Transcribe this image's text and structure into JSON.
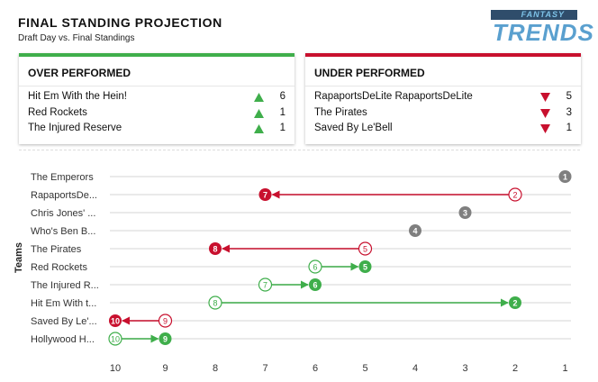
{
  "header": {
    "title": "FINAL STANDING PROJECTION",
    "subtitle": "Draft Day vs. Final Standings"
  },
  "logo": {
    "small_text": "FANTASY",
    "big_text": "TRENDS"
  },
  "over": {
    "title": "OVER PERFORMED",
    "color": "#3fae4b",
    "rows": [
      {
        "name": "Hit Em With the Hein!",
        "value": "6"
      },
      {
        "name": "Red Rockets",
        "value": "1"
      },
      {
        "name": "The Injured Reserve",
        "value": "1"
      }
    ]
  },
  "under": {
    "title": "UNDER PERFORMED",
    "color": "#c8102e",
    "rows": [
      {
        "name": "RapaportsDeLite RapaportsDeLite",
        "value": "5"
      },
      {
        "name": "The Pirates",
        "value": "3"
      },
      {
        "name": "Saved By Le'Bell",
        "value": "1"
      }
    ]
  },
  "chart_data": {
    "type": "scatter",
    "ylabel": "Teams",
    "xlabel": "",
    "xlim": [
      10,
      1
    ],
    "x_ticks": [
      "10",
      "9",
      "8",
      "7",
      "6",
      "5",
      "4",
      "3",
      "2",
      "1"
    ],
    "colors": {
      "up": "#3fae4b",
      "down": "#c8102e",
      "same": "#7f7f7f"
    },
    "teams": [
      {
        "label": "The Emperors",
        "draft": 1,
        "final": 1
      },
      {
        "label": "RapaportsDe...",
        "draft": 2,
        "final": 7
      },
      {
        "label": "Chris Jones' ...",
        "draft": 3,
        "final": 3
      },
      {
        "label": "Who's Ben B...",
        "draft": 4,
        "final": 4
      },
      {
        "label": "The Pirates",
        "draft": 5,
        "final": 8
      },
      {
        "label": "Red Rockets",
        "draft": 6,
        "final": 5
      },
      {
        "label": "The Injured R...",
        "draft": 7,
        "final": 6
      },
      {
        "label": "Hit Em With t...",
        "draft": 8,
        "final": 2
      },
      {
        "label": "Saved By Le'...",
        "draft": 9,
        "final": 10
      },
      {
        "label": "Hollywood H...",
        "draft": 10,
        "final": 9
      }
    ]
  }
}
